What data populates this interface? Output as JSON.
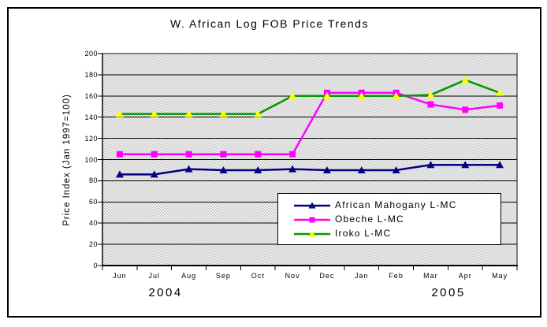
{
  "frame": {
    "border_color": "#000000"
  },
  "chart_data": {
    "type": "line",
    "title": "W. African Log FOB Price Trends",
    "ylabel": "Price Index (Jan 1997=100)",
    "xlabel": "",
    "ylim": [
      0,
      200
    ],
    "yticks": [
      0,
      20,
      40,
      60,
      80,
      100,
      120,
      140,
      160,
      180,
      200
    ],
    "grid": true,
    "plot_bg_color": "#d8d8d8",
    "plot_border_color": "#808080",
    "gridline_color": "#000000",
    "categories": [
      "Jun",
      "Jul",
      "Aug",
      "Sep",
      "Oct",
      "Nov",
      "Dec",
      "Jan",
      "Feb",
      "Mar",
      "Apr",
      "May"
    ],
    "x_axis_group_labels": [
      "2004",
      "2005"
    ],
    "legend": {
      "position": "inside-bottom",
      "bg_color": "#ffffff",
      "border_color": "#000000"
    },
    "series": [
      {
        "name": "African Mahogany L-MC",
        "line_color": "#000080",
        "marker": "triangle",
        "marker_color": "#000080",
        "values": [
          86,
          86,
          91,
          90,
          90,
          91,
          90,
          90,
          90,
          95,
          95,
          95
        ]
      },
      {
        "name": "Obeche L-MC",
        "line_color": "#ff00ff",
        "marker": "square",
        "marker_color": "#ff00ff",
        "values": [
          105,
          105,
          105,
          105,
          105,
          105,
          163,
          163,
          163,
          152,
          147,
          151
        ]
      },
      {
        "name": "Iroko L-MC",
        "line_color": "#009900",
        "marker": "triangle",
        "marker_color": "#ffff00",
        "values": [
          143,
          143,
          143,
          143,
          143,
          160,
          160,
          160,
          160,
          161,
          175,
          163
        ]
      }
    ]
  }
}
